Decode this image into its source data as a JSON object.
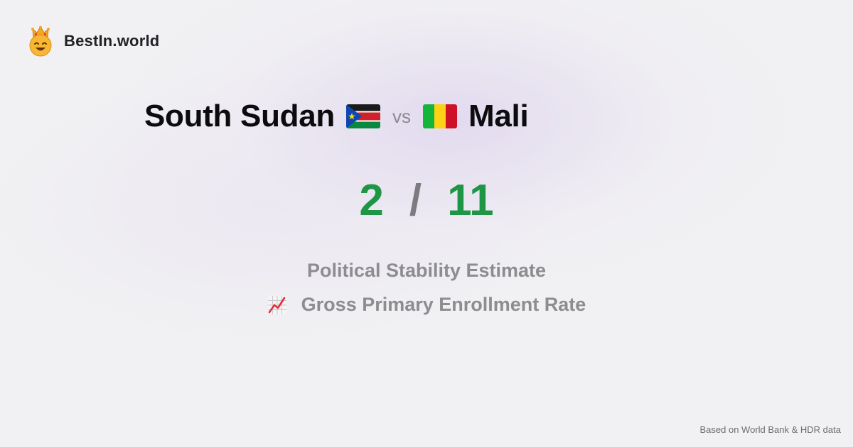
{
  "brand": {
    "name": "BestIn.world",
    "logo_icon": "king-smiley-icon"
  },
  "comparison": {
    "left_country": "South Sudan",
    "left_flag_icon": "south-sudan-flag-icon",
    "vs_label": "vs",
    "right_flag_icon": "mali-flag-icon",
    "right_country": "Mali"
  },
  "score": {
    "left": "2",
    "separator": "/",
    "right": "11",
    "value_color": "#1f9646"
  },
  "metrics": [
    {
      "label": "Political Stability Estimate"
    },
    {
      "icon": "chart-increasing-icon",
      "label": "Gross Primary Enrollment Rate"
    }
  ],
  "footer": {
    "source_note": "Based on World Bank & HDR data"
  }
}
